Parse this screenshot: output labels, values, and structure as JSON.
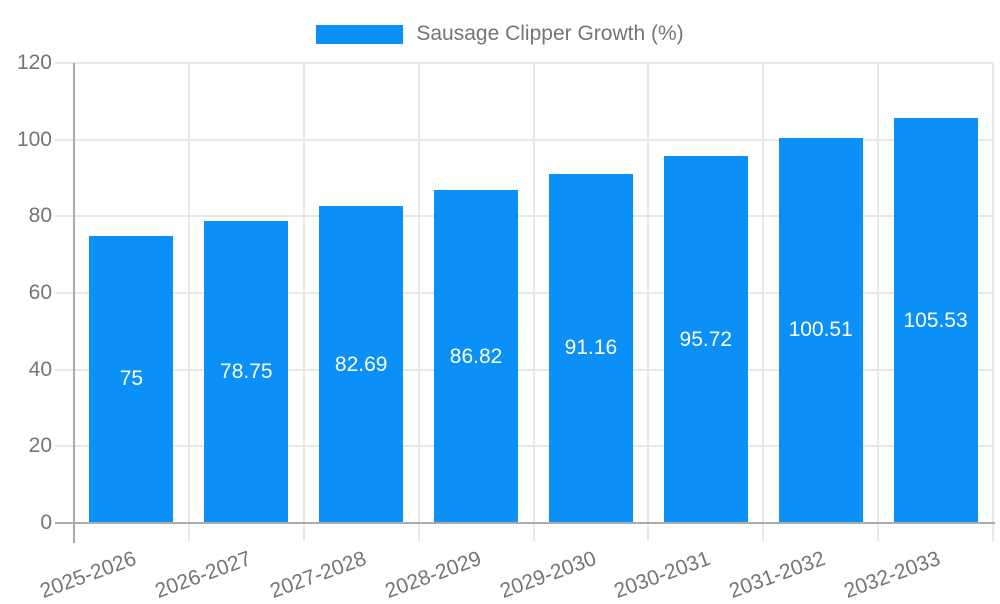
{
  "chart_data": {
    "type": "bar",
    "title": "Sausage Clipper Growth (%)",
    "categories": [
      "2025-2026",
      "2026-2027",
      "2027-2028",
      "2028-2029",
      "2029-2030",
      "2030-2031",
      "2031-2032",
      "2032-2033"
    ],
    "values": [
      75,
      78.75,
      82.69,
      86.82,
      91.16,
      95.72,
      100.51,
      105.53
    ],
    "value_labels": [
      "75",
      "78.75",
      "82.69",
      "86.82",
      "91.16",
      "95.72",
      "100.51",
      "105.53"
    ],
    "yticks": [
      "0",
      "20",
      "40",
      "60",
      "80",
      "100",
      "120"
    ],
    "ylim": [
      0,
      120
    ],
    "xlabel": "",
    "ylabel": "",
    "grid": true,
    "legend_position": "top-center",
    "colors": {
      "bar": "#0b90f8",
      "bar_label": "#ffffff",
      "text": "#757575",
      "gridline": "#e8e8e8",
      "axis": "#ababab",
      "background": "#ffffff"
    }
  }
}
